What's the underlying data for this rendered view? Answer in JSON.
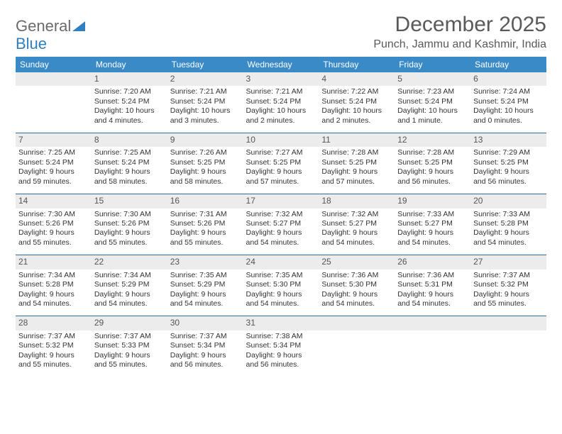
{
  "brand": {
    "name": "General",
    "sub": "Blue"
  },
  "title": "December 2025",
  "location": "Punch, Jammu and Kashmir, India",
  "colors": {
    "header_bg": "#3a8ac8",
    "header_text": "#ffffff",
    "rule": "#2f6da6",
    "daynum_bg": "#ececec",
    "text": "#333333",
    "brand_gray": "#6b6b6b",
    "brand_blue": "#2f7fc1"
  },
  "weekdays": [
    "Sunday",
    "Monday",
    "Tuesday",
    "Wednesday",
    "Thursday",
    "Friday",
    "Saturday"
  ],
  "weeks": [
    [
      null,
      {
        "n": "1",
        "sr": "7:20 AM",
        "ss": "5:24 PM",
        "dl": "10 hours and 4 minutes."
      },
      {
        "n": "2",
        "sr": "7:21 AM",
        "ss": "5:24 PM",
        "dl": "10 hours and 3 minutes."
      },
      {
        "n": "3",
        "sr": "7:21 AM",
        "ss": "5:24 PM",
        "dl": "10 hours and 2 minutes."
      },
      {
        "n": "4",
        "sr": "7:22 AM",
        "ss": "5:24 PM",
        "dl": "10 hours and 2 minutes."
      },
      {
        "n": "5",
        "sr": "7:23 AM",
        "ss": "5:24 PM",
        "dl": "10 hours and 1 minute."
      },
      {
        "n": "6",
        "sr": "7:24 AM",
        "ss": "5:24 PM",
        "dl": "10 hours and 0 minutes."
      }
    ],
    [
      {
        "n": "7",
        "sr": "7:25 AM",
        "ss": "5:24 PM",
        "dl": "9 hours and 59 minutes."
      },
      {
        "n": "8",
        "sr": "7:25 AM",
        "ss": "5:24 PM",
        "dl": "9 hours and 58 minutes."
      },
      {
        "n": "9",
        "sr": "7:26 AM",
        "ss": "5:25 PM",
        "dl": "9 hours and 58 minutes."
      },
      {
        "n": "10",
        "sr": "7:27 AM",
        "ss": "5:25 PM",
        "dl": "9 hours and 57 minutes."
      },
      {
        "n": "11",
        "sr": "7:28 AM",
        "ss": "5:25 PM",
        "dl": "9 hours and 57 minutes."
      },
      {
        "n": "12",
        "sr": "7:28 AM",
        "ss": "5:25 PM",
        "dl": "9 hours and 56 minutes."
      },
      {
        "n": "13",
        "sr": "7:29 AM",
        "ss": "5:25 PM",
        "dl": "9 hours and 56 minutes."
      }
    ],
    [
      {
        "n": "14",
        "sr": "7:30 AM",
        "ss": "5:26 PM",
        "dl": "9 hours and 55 minutes."
      },
      {
        "n": "15",
        "sr": "7:30 AM",
        "ss": "5:26 PM",
        "dl": "9 hours and 55 minutes."
      },
      {
        "n": "16",
        "sr": "7:31 AM",
        "ss": "5:26 PM",
        "dl": "9 hours and 55 minutes."
      },
      {
        "n": "17",
        "sr": "7:32 AM",
        "ss": "5:27 PM",
        "dl": "9 hours and 54 minutes."
      },
      {
        "n": "18",
        "sr": "7:32 AM",
        "ss": "5:27 PM",
        "dl": "9 hours and 54 minutes."
      },
      {
        "n": "19",
        "sr": "7:33 AM",
        "ss": "5:27 PM",
        "dl": "9 hours and 54 minutes."
      },
      {
        "n": "20",
        "sr": "7:33 AM",
        "ss": "5:28 PM",
        "dl": "9 hours and 54 minutes."
      }
    ],
    [
      {
        "n": "21",
        "sr": "7:34 AM",
        "ss": "5:28 PM",
        "dl": "9 hours and 54 minutes."
      },
      {
        "n": "22",
        "sr": "7:34 AM",
        "ss": "5:29 PM",
        "dl": "9 hours and 54 minutes."
      },
      {
        "n": "23",
        "sr": "7:35 AM",
        "ss": "5:29 PM",
        "dl": "9 hours and 54 minutes."
      },
      {
        "n": "24",
        "sr": "7:35 AM",
        "ss": "5:30 PM",
        "dl": "9 hours and 54 minutes."
      },
      {
        "n": "25",
        "sr": "7:36 AM",
        "ss": "5:30 PM",
        "dl": "9 hours and 54 minutes."
      },
      {
        "n": "26",
        "sr": "7:36 AM",
        "ss": "5:31 PM",
        "dl": "9 hours and 54 minutes."
      },
      {
        "n": "27",
        "sr": "7:37 AM",
        "ss": "5:32 PM",
        "dl": "9 hours and 55 minutes."
      }
    ],
    [
      {
        "n": "28",
        "sr": "7:37 AM",
        "ss": "5:32 PM",
        "dl": "9 hours and 55 minutes."
      },
      {
        "n": "29",
        "sr": "7:37 AM",
        "ss": "5:33 PM",
        "dl": "9 hours and 55 minutes."
      },
      {
        "n": "30",
        "sr": "7:37 AM",
        "ss": "5:34 PM",
        "dl": "9 hours and 56 minutes."
      },
      {
        "n": "31",
        "sr": "7:38 AM",
        "ss": "5:34 PM",
        "dl": "9 hours and 56 minutes."
      },
      null,
      null,
      null
    ]
  ],
  "labels": {
    "sunrise": "Sunrise:",
    "sunset": "Sunset:",
    "daylight": "Daylight:"
  }
}
